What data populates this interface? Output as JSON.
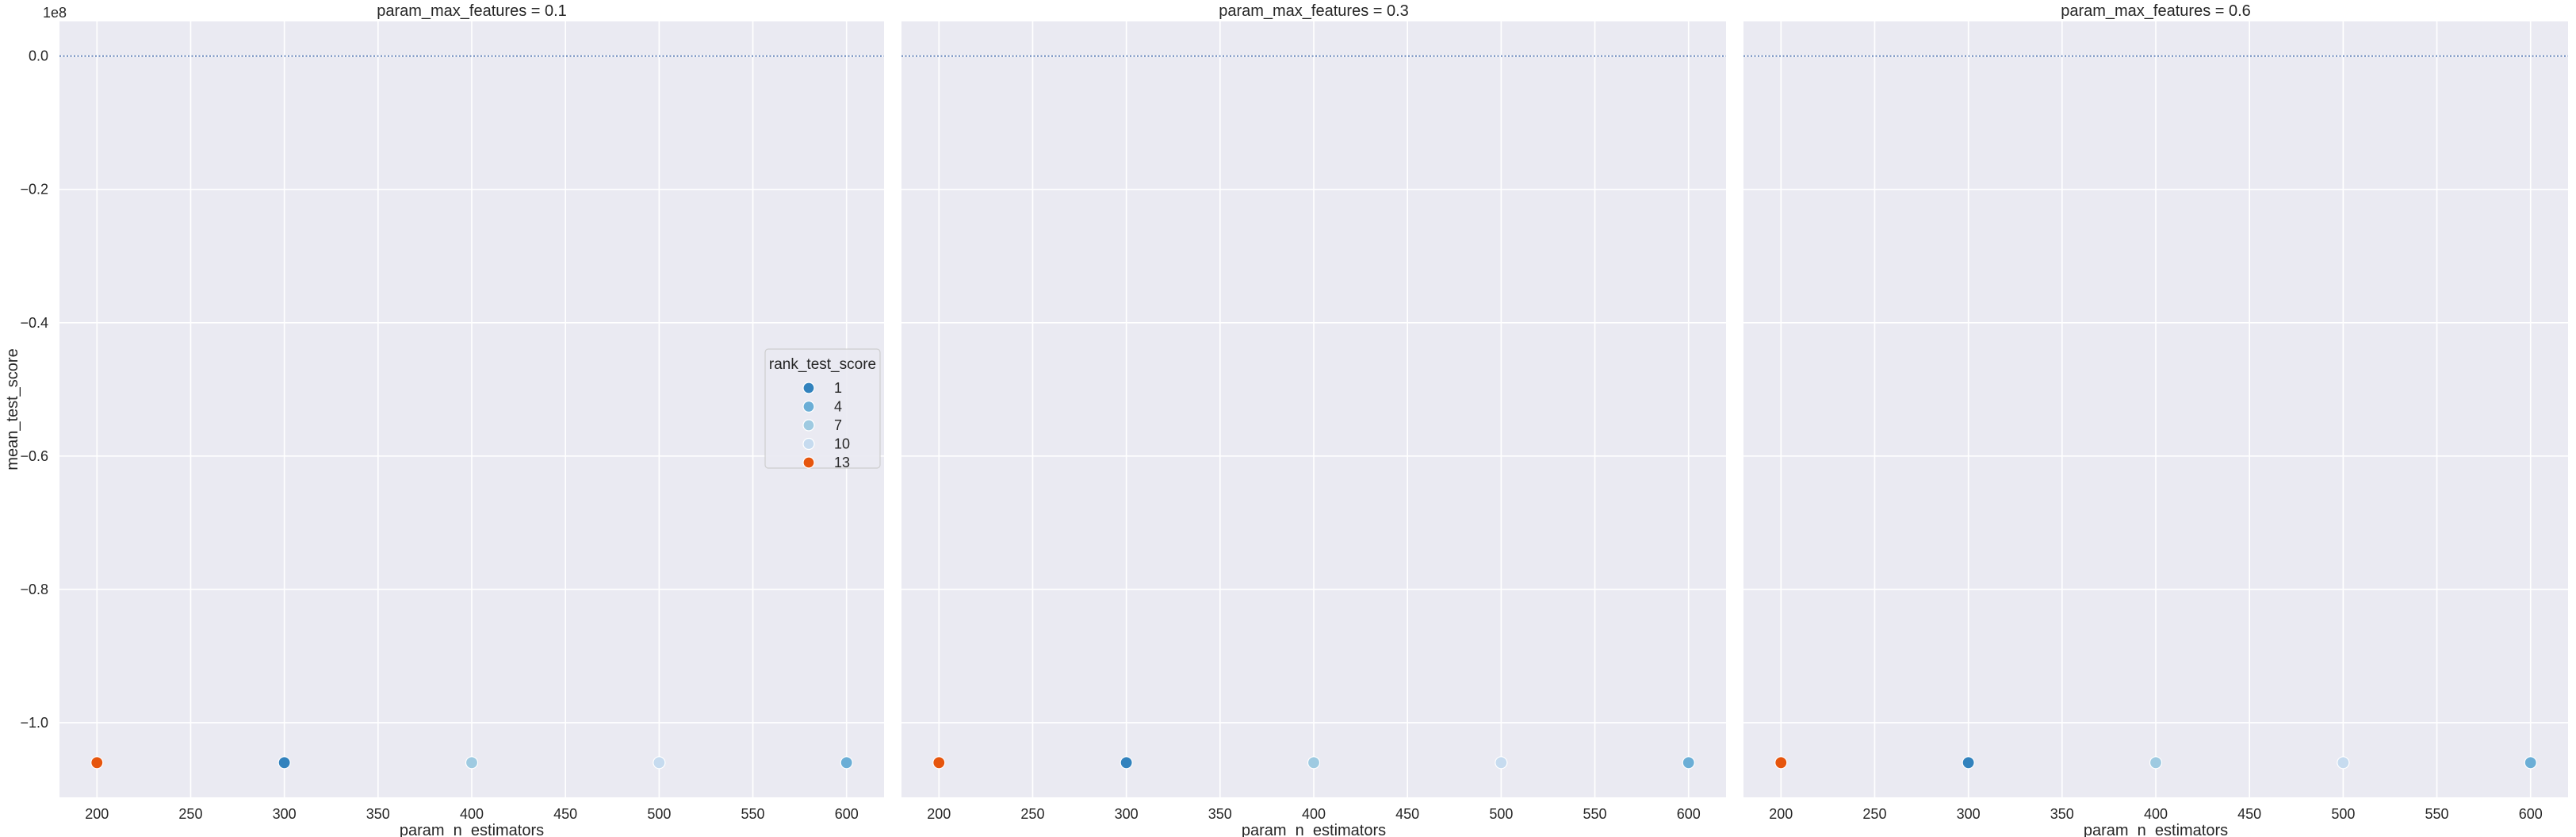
{
  "chart_data": {
    "type": "scatter",
    "xlabel": "param_n_estimators",
    "ylabel": "mean_test_score",
    "y_offset_label": "1e8",
    "xlim": [
      180,
      620
    ],
    "ylim": [
      -1.112,
      0.052
    ],
    "x_ticks": [
      200,
      250,
      300,
      350,
      400,
      450,
      500,
      550,
      600
    ],
    "y_ticks": [
      0.0,
      -0.2,
      -0.4,
      -0.6,
      -0.8,
      -1.0
    ],
    "y_tick_labels": [
      "0.0",
      "−0.2",
      "−0.4",
      "−0.6",
      "−0.8",
      "−1.0"
    ],
    "reference_line_y": 0.0,
    "grid": true,
    "legend": {
      "title": "rank_test_score",
      "placement": "center-right of first panel",
      "entries": [
        {
          "label": "1",
          "color": "#3282bd"
        },
        {
          "label": "4",
          "color": "#6baed6"
        },
        {
          "label": "7",
          "color": "#9ecae1"
        },
        {
          "label": "10",
          "color": "#c6dbef"
        },
        {
          "label": "13",
          "color": "#e6550d"
        }
      ]
    },
    "panels": [
      {
        "title": "param_max_features = 0.1",
        "points": [
          {
            "x": 200,
            "y": -1.06,
            "rank": 13,
            "color": "#e6550d"
          },
          {
            "x": 300,
            "y": -1.06,
            "rank": 1,
            "color": "#3282bd"
          },
          {
            "x": 400,
            "y": -1.06,
            "rank": 7,
            "color": "#9ecae1"
          },
          {
            "x": 500,
            "y": -1.06,
            "rank": 10,
            "color": "#c6dbef"
          },
          {
            "x": 600,
            "y": -1.06,
            "rank": 4,
            "color": "#6baed6"
          }
        ]
      },
      {
        "title": "param_max_features = 0.3",
        "points": [
          {
            "x": 200,
            "y": -1.06,
            "rank": 13,
            "color": "#e6550d"
          },
          {
            "x": 300,
            "y": -1.06,
            "rank": 1,
            "color": "#3282bd"
          },
          {
            "x": 400,
            "y": -1.06,
            "rank": 7,
            "color": "#9ecae1"
          },
          {
            "x": 500,
            "y": -1.06,
            "rank": 10,
            "color": "#c6dbef"
          },
          {
            "x": 600,
            "y": -1.06,
            "rank": 4,
            "color": "#6baed6"
          }
        ]
      },
      {
        "title": "param_max_features = 0.6",
        "points": [
          {
            "x": 200,
            "y": -1.06,
            "rank": 13,
            "color": "#e6550d"
          },
          {
            "x": 300,
            "y": -1.06,
            "rank": 1,
            "color": "#3282bd"
          },
          {
            "x": 400,
            "y": -1.06,
            "rank": 7,
            "color": "#9ecae1"
          },
          {
            "x": 500,
            "y": -1.06,
            "rank": 10,
            "color": "#c6dbef"
          },
          {
            "x": 600,
            "y": -1.06,
            "rank": 4,
            "color": "#6baed6"
          }
        ]
      }
    ],
    "colors": {
      "panel_background": "#eaeaf2",
      "grid": "#ffffff",
      "reference_line": "#4c72b0"
    }
  }
}
